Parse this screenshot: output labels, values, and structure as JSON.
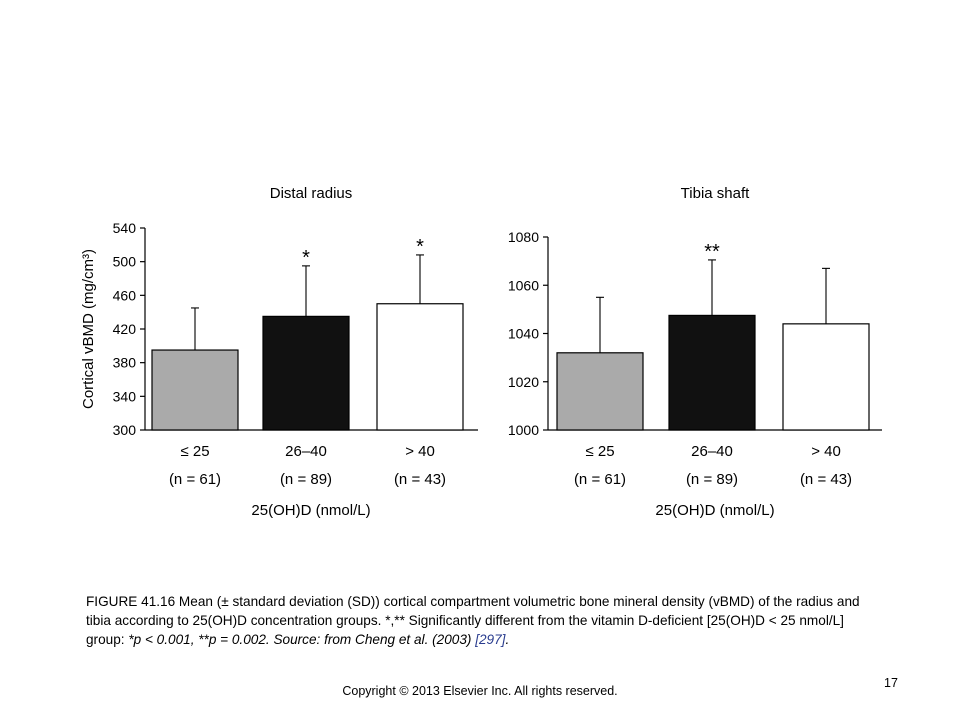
{
  "chart_data": [
    {
      "type": "bar",
      "title": "Distal radius",
      "ylabel": "Cortical vBMD (mg/cm³)",
      "ylim": [
        300,
        540
      ],
      "yticks": [
        300,
        340,
        380,
        420,
        460,
        500,
        540
      ],
      "xlabel": "25(OH)D (nmol/L)",
      "categories": [
        "≤ 25",
        "26–40",
        "> 40"
      ],
      "n_labels": [
        "(n = 61)",
        "(n = 89)",
        "(n = 43)"
      ],
      "values": [
        395,
        435,
        450
      ],
      "errors": [
        50,
        60,
        58
      ],
      "significance": [
        "",
        "*",
        "*"
      ],
      "bar_colors": [
        "#aaaaaa",
        "#111111",
        "#ffffff"
      ]
    },
    {
      "type": "bar",
      "title": "Tibia shaft",
      "ylabel": "",
      "ylim": [
        1000,
        1080
      ],
      "yticks": [
        1000,
        1020,
        1040,
        1060,
        1080
      ],
      "xlabel": "25(OH)D (nmol/L)",
      "categories": [
        "≤ 25",
        "26–40",
        "> 40"
      ],
      "n_labels": [
        "(n = 61)",
        "(n = 89)",
        "(n = 43)"
      ],
      "values": [
        1032,
        1047.5,
        1044
      ],
      "errors": [
        23,
        23,
        23
      ],
      "significance": [
        "",
        "**",
        ""
      ],
      "bar_colors": [
        "#aaaaaa",
        "#111111",
        "#ffffff"
      ]
    }
  ],
  "caption": {
    "fig_label": "FIGURE 41.16",
    "text1": " Mean (± standard deviation (SD)) cortical compartment volumetric bone mineral density (vBMD) of the radius and tibia according to 25(OH)D concentration groups. *,** Significantly different from the vitamin D-deficient [25(OH)D < 25 nmol/L] group: ",
    "stats": "*p < 0.001, **p = 0.002. Source: from Cheng et al. (2003) ",
    "ref": "[297]",
    "end": "."
  },
  "footer": {
    "copyright": "Copyright © 2013 Elsevier Inc. All rights reserved.",
    "page_number": "17"
  }
}
